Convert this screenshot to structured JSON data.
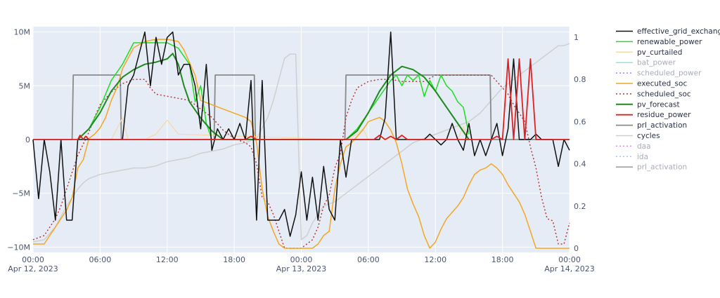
{
  "chart_data": {
    "type": "line",
    "grid": true,
    "legend_position": "right",
    "background": "#e5ecf6",
    "x_ticks": [
      {
        "t": 0,
        "label": "00:00",
        "sub": "Apr 12, 2023"
      },
      {
        "t": 6,
        "label": "06:00",
        "sub": ""
      },
      {
        "t": 12,
        "label": "12:00",
        "sub": ""
      },
      {
        "t": 18,
        "label": "18:00",
        "sub": ""
      },
      {
        "t": 24,
        "label": "00:00",
        "sub": "Apr 13, 2023"
      },
      {
        "t": 30,
        "label": "06:00",
        "sub": ""
      },
      {
        "t": 36,
        "label": "12:00",
        "sub": ""
      },
      {
        "t": 42,
        "label": "18:00",
        "sub": ""
      },
      {
        "t": 48,
        "label": "00:00",
        "sub": "Apr 14, 2023"
      }
    ],
    "x_range_hours": [
      0,
      48
    ],
    "y_left": {
      "range": [
        -10500000,
        10500000
      ],
      "ticks": [
        {
          "v": 10000000,
          "label": "10M"
        },
        {
          "v": 5000000,
          "label": "5M"
        },
        {
          "v": 0,
          "label": "0"
        },
        {
          "v": -5000000,
          "label": "−5M"
        },
        {
          "v": -10000000,
          "label": "−10M"
        }
      ]
    },
    "y_right": {
      "range": [
        -0.02,
        1.05
      ],
      "ticks": [
        {
          "v": 1,
          "label": "1"
        },
        {
          "v": 0.8,
          "label": "0.8"
        },
        {
          "v": 0.6,
          "label": "0.6"
        },
        {
          "v": 0.4,
          "label": "0.4"
        },
        {
          "v": 0.2,
          "label": "0.2"
        },
        {
          "v": 0,
          "label": "0"
        }
      ]
    },
    "series": [
      {
        "name": "effective_grid_exchange",
        "color": "#111111",
        "dash": "solid",
        "width": 1.5,
        "axis": "left",
        "x": [
          0,
          0.5,
          1,
          1.5,
          2,
          2.5,
          3,
          3.5,
          4,
          4.5,
          5,
          5.5,
          6,
          6.5,
          7,
          7.5,
          8,
          8.5,
          9,
          9.5,
          10,
          10.5,
          11,
          11.5,
          12,
          12.5,
          13,
          13.5,
          14,
          14.5,
          15,
          15.5,
          16,
          16.5,
          17,
          17.5,
          18,
          18.5,
          19,
          19.5,
          20,
          20.5,
          21,
          21.5,
          22,
          22.5,
          23,
          23.5,
          24,
          24.5,
          25,
          25.5,
          26,
          26.5,
          27,
          27.5,
          28,
          28.5,
          29,
          29.5,
          30,
          30.5,
          31,
          31.5,
          32,
          32.5,
          33,
          33.5,
          34,
          34.5,
          35,
          35.5,
          36,
          36.5,
          37,
          37.5,
          38,
          38.5,
          39,
          39.5,
          40,
          40.5,
          41,
          41.5,
          42,
          42.5,
          43,
          43.5,
          44,
          44.5,
          45,
          45.5,
          46,
          46.5,
          47,
          47.5,
          48
        ],
        "y": [
          0,
          -5500000,
          0,
          -3000000,
          -7500000,
          0,
          -7500000,
          -7500000,
          0,
          0,
          0,
          0,
          0,
          0,
          0,
          0,
          0,
          5000000,
          6000000,
          8000000,
          10000000,
          5000000,
          9500000,
          7000000,
          9500000,
          10000000,
          6000000,
          7000000,
          7000000,
          5000000,
          1000000,
          7000000,
          -1000000,
          1000000,
          0,
          1000000,
          0,
          1500000,
          0,
          5500000,
          -7500000,
          5500000,
          -7500000,
          -7500000,
          -7500000,
          -6500000,
          -9000000,
          -7000000,
          -3000000,
          -7500000,
          -3500000,
          -7500000,
          -2500000,
          -6500000,
          -7500000,
          0,
          -3500000,
          0,
          0,
          0,
          0,
          0,
          0,
          2000000,
          10000000,
          0,
          0,
          0,
          0,
          0,
          0,
          500000,
          0,
          -500000,
          0,
          1500000,
          0,
          -1000000,
          1500000,
          -1500000,
          0,
          -1500000,
          0,
          1500000,
          -1500000,
          1000000,
          7500000,
          0,
          0,
          0,
          500000,
          0,
          0,
          0,
          -2500000,
          0,
          -1000000
        ]
      },
      {
        "name": "renewable_power",
        "color": "#22dd22",
        "dash": "solid",
        "width": 1.5,
        "axis": "left",
        "x": [
          4,
          5,
          6,
          7,
          8,
          9,
          10,
          11,
          12,
          13,
          14,
          14.5,
          15,
          15.5,
          16,
          17,
          28,
          29,
          30,
          31,
          32,
          32.5,
          33,
          33.5,
          34,
          34.5,
          35,
          35.5,
          36,
          36.5,
          37,
          37.5,
          38,
          38.5,
          39
        ],
        "y": [
          0,
          1000000,
          3000000,
          5500000,
          7000000,
          9000000,
          9000000,
          9000000,
          9000000,
          8500000,
          7000000,
          3500000,
          5000000,
          1500000,
          0,
          0,
          0,
          1000000,
          2500000,
          4000000,
          5500000,
          6000000,
          5000000,
          6000000,
          5500000,
          6000000,
          4000000,
          5500000,
          4500000,
          6000000,
          5000000,
          4500000,
          3500000,
          3000000,
          500000
        ]
      },
      {
        "name": "pv_curtailed",
        "color": "#f8d7a8",
        "dash": "solid",
        "width": 1.2,
        "axis": "left",
        "x": [
          7,
          8,
          8.5,
          9,
          10,
          11,
          12,
          13,
          28,
          29,
          29.5,
          30,
          31,
          38,
          38.5,
          39
        ],
        "y": [
          0,
          2000000,
          0,
          0,
          0,
          500000,
          1800000,
          500000,
          0,
          500000,
          1000000,
          0,
          0,
          0,
          1200000,
          0
        ]
      },
      {
        "name": "bat_power",
        "color": "#8fe5e8",
        "dash": "solid",
        "width": 1.2,
        "axis": "left",
        "legend_only": true,
        "x": [],
        "y": []
      },
      {
        "name": "scheduled_power",
        "color": "#8c8cf5",
        "dash": "dot",
        "width": 1.2,
        "axis": "left",
        "legend_only": true,
        "x": [],
        "y": []
      },
      {
        "name": "executed_soc",
        "color": "#f5a623",
        "dash": "solid",
        "width": 1.5,
        "axis": "right",
        "x": [
          0,
          0.5,
          1,
          1.5,
          2,
          2.5,
          3,
          3.5,
          4,
          4.5,
          5,
          5.5,
          6,
          6.5,
          7,
          7.5,
          8,
          9,
          10,
          11,
          12,
          13,
          13.5,
          14,
          14.5,
          15,
          16,
          17,
          18,
          19,
          19.5,
          20,
          20.5,
          21,
          21.5,
          22,
          22.5,
          23,
          23.5,
          24,
          24.5,
          25,
          25.5,
          26,
          26.5,
          27,
          27.5,
          28,
          28.5,
          29,
          29.5,
          30,
          31,
          31.5,
          32,
          32.5,
          33,
          33.5,
          34,
          34.5,
          35,
          35.5,
          36,
          36.5,
          37,
          37.5,
          38,
          38.5,
          39,
          39.5,
          40,
          40.5,
          41,
          41.5,
          42,
          42.5,
          43,
          43.5,
          44,
          44.5,
          45,
          45.5,
          46,
          46.5,
          47,
          47.5,
          48
        ],
        "y": [
          0.02,
          0.02,
          0.02,
          0.06,
          0.1,
          0.14,
          0.18,
          0.24,
          0.38,
          0.42,
          0.52,
          0.54,
          0.57,
          0.62,
          0.7,
          0.76,
          0.85,
          0.95,
          0.98,
          0.99,
          0.99,
          0.98,
          0.94,
          0.88,
          0.82,
          0.7,
          0.68,
          0.66,
          0.64,
          0.62,
          0.6,
          0.5,
          0.28,
          0.15,
          0.08,
          0.02,
          0.0,
          0.0,
          0.0,
          0.0,
          0.0,
          0.0,
          0.02,
          0.06,
          0.08,
          0.28,
          0.4,
          0.48,
          0.5,
          0.53,
          0.56,
          0.6,
          0.62,
          0.6,
          0.56,
          0.5,
          0.4,
          0.28,
          0.21,
          0.15,
          0.06,
          0.0,
          0.03,
          0.09,
          0.14,
          0.17,
          0.2,
          0.24,
          0.3,
          0.35,
          0.37,
          0.38,
          0.4,
          0.38,
          0.35,
          0.3,
          0.26,
          0.22,
          0.16,
          0.08,
          0.0,
          0.0,
          0.0,
          0.0,
          0.0,
          0.0,
          0.0
        ]
      },
      {
        "name": "scheduled_soc",
        "color": "#b53a3a",
        "dash": "dot",
        "width": 1.5,
        "axis": "right",
        "x": [
          0,
          1,
          2,
          2.5,
          3,
          3.5,
          4,
          5,
          5.5,
          6,
          7,
          8,
          9,
          10,
          10.5,
          11,
          12,
          13,
          14,
          15,
          16,
          17,
          18,
          19,
          19.5,
          20,
          20.5,
          21,
          21.5,
          22,
          22.5,
          23,
          23.5,
          24,
          24.5,
          25,
          25.5,
          26,
          26.5,
          27,
          27.5,
          28,
          28.5,
          29,
          30,
          31,
          32,
          33,
          34,
          35,
          36,
          37,
          38,
          39,
          40,
          41,
          42,
          42.5,
          43,
          43.5,
          44,
          44.5,
          45,
          45.5,
          46,
          46.5,
          47,
          47.5,
          48
        ],
        "y": [
          0.04,
          0.06,
          0.14,
          0.2,
          0.28,
          0.36,
          0.44,
          0.55,
          0.62,
          0.68,
          0.74,
          0.78,
          0.8,
          0.8,
          0.76,
          0.73,
          0.72,
          0.71,
          0.7,
          0.66,
          0.62,
          0.56,
          0.52,
          0.5,
          0.48,
          0.4,
          0.24,
          0.22,
          0.16,
          0.08,
          0.0,
          0.0,
          0.0,
          0.0,
          0.02,
          0.04,
          0.1,
          0.2,
          0.25,
          0.38,
          0.45,
          0.62,
          0.7,
          0.76,
          0.79,
          0.8,
          0.8,
          0.79,
          0.79,
          0.79,
          0.82,
          0.82,
          0.82,
          0.82,
          0.82,
          0.82,
          0.76,
          0.73,
          0.68,
          0.64,
          0.6,
          0.48,
          0.38,
          0.24,
          0.14,
          0.13,
          0.02,
          0.02,
          0.12
        ]
      },
      {
        "name": "pv_forecast",
        "color": "#1f8a1f",
        "dash": "solid",
        "width": 2,
        "axis": "left",
        "x": [
          4,
          5,
          6,
          7,
          8,
          9,
          10,
          11,
          12,
          12.5,
          13,
          13.5,
          14,
          15,
          16,
          17,
          28,
          29,
          30,
          31,
          32,
          33,
          34,
          35,
          36,
          37,
          38,
          39
        ],
        "y": [
          0,
          1000000,
          2500000,
          4500000,
          5800000,
          6500000,
          7000000,
          7200000,
          7500000,
          8000000,
          7000000,
          5000000,
          3500000,
          2000000,
          800000,
          0,
          0,
          800000,
          2500000,
          4500000,
          6000000,
          6800000,
          6500000,
          5800000,
          4500000,
          3000000,
          1500000,
          0
        ]
      },
      {
        "name": "residue_power",
        "color": "#e02020",
        "dash": "solid",
        "width": 1.8,
        "axis": "left",
        "x": [
          0,
          4,
          4.2,
          4.5,
          4.7,
          5,
          18,
          19,
          19.5,
          20,
          26,
          30.5,
          31,
          31.5,
          32,
          32.5,
          33,
          33.5,
          40,
          41,
          41.5,
          42,
          42.5,
          43,
          43.5,
          44,
          44.5,
          45,
          46,
          48
        ],
        "y": [
          0,
          0,
          400000,
          0,
          300000,
          0,
          0,
          0,
          300000,
          0,
          0,
          0,
          400000,
          0,
          300000,
          0,
          400000,
          0,
          0,
          0,
          300000,
          0,
          7500000,
          0,
          7500000,
          0,
          7500000,
          0,
          0,
          0
        ]
      },
      {
        "name": "prl_activation",
        "color": "#8a8a8a",
        "dash": "solid",
        "width": 1.8,
        "axis": "left",
        "x": [
          0,
          3.5,
          3.6,
          7.8,
          7.9,
          16.2,
          16.3,
          19.8,
          19.9,
          27.9,
          28,
          40.9,
          41,
          48
        ],
        "y": [
          0,
          0,
          6000000,
          6000000,
          0,
          0,
          6000000,
          6000000,
          0,
          0,
          6000000,
          6000000,
          0,
          0
        ]
      },
      {
        "name": "cycles",
        "color": "#cfcfcf",
        "dash": "solid",
        "width": 1.5,
        "axis": "right",
        "x": [
          0,
          1,
          2,
          3,
          4,
          4.5,
          5,
          6,
          7,
          8,
          9,
          10,
          11,
          12,
          13,
          14,
          15,
          16,
          17,
          18,
          19,
          20,
          21,
          21.5,
          22,
          22.5,
          23,
          23.5,
          24,
          24.5,
          25,
          26,
          27,
          28,
          29,
          30,
          31,
          32,
          33,
          34,
          35,
          36,
          37,
          38,
          39,
          40,
          41,
          42,
          43,
          44,
          45,
          46,
          46.5,
          47,
          47.5,
          48
        ],
        "y": [
          0.03,
          0.04,
          0.1,
          0.2,
          0.28,
          0.31,
          0.33,
          0.35,
          0.36,
          0.37,
          0.38,
          0.38,
          0.39,
          0.41,
          0.42,
          0.43,
          0.45,
          0.46,
          0.47,
          0.49,
          0.5,
          0.52,
          0.62,
          0.7,
          0.8,
          0.9,
          0.92,
          0.92,
          0.04,
          0.06,
          0.12,
          0.2,
          0.22,
          0.26,
          0.3,
          0.34,
          0.38,
          0.42,
          0.46,
          0.5,
          0.52,
          0.54,
          0.56,
          0.58,
          0.6,
          0.64,
          0.7,
          0.76,
          0.8,
          0.84,
          0.88,
          0.92,
          0.94,
          0.96,
          0.96,
          0.97
        ]
      },
      {
        "name": "daa",
        "color": "#d88bd8",
        "dash": "dot",
        "width": 1.2,
        "axis": "left",
        "legend_only": true,
        "x": [],
        "y": []
      },
      {
        "name": "ida",
        "color": "#9ec9e8",
        "dash": "dot",
        "width": 1.2,
        "axis": "left",
        "legend_only": true,
        "x": [],
        "y": []
      },
      {
        "name": "prl_activation",
        "color": "#aaaaaa",
        "dash": "solid",
        "width": 1.8,
        "axis": "left",
        "legend_only": true,
        "x": [],
        "y": []
      }
    ]
  }
}
